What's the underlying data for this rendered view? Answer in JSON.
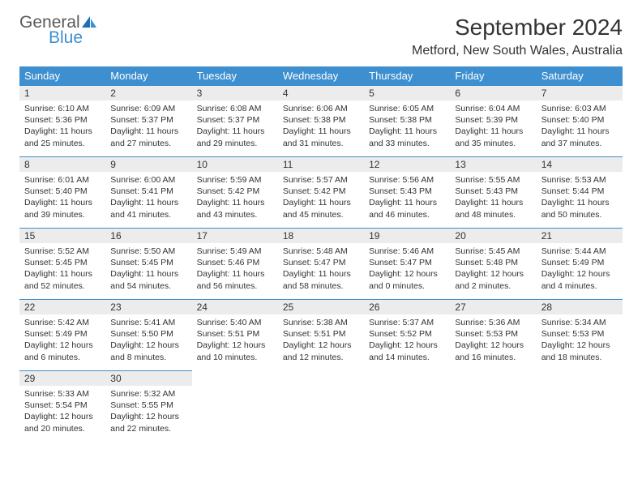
{
  "logo": {
    "line1": "General",
    "line2": "Blue"
  },
  "title": "September 2024",
  "location": "Metford, New South Wales, Australia",
  "colors": {
    "header_bg": "#3d8fcf",
    "daynum_bg": "#ececec",
    "rule": "#3d8fcf",
    "text": "#333333"
  },
  "day_headers": [
    "Sunday",
    "Monday",
    "Tuesday",
    "Wednesday",
    "Thursday",
    "Friday",
    "Saturday"
  ],
  "days": [
    {
      "n": "1",
      "sr": "Sunrise: 6:10 AM",
      "ss": "Sunset: 5:36 PM",
      "d1": "Daylight: 11 hours",
      "d2": "and 25 minutes."
    },
    {
      "n": "2",
      "sr": "Sunrise: 6:09 AM",
      "ss": "Sunset: 5:37 PM",
      "d1": "Daylight: 11 hours",
      "d2": "and 27 minutes."
    },
    {
      "n": "3",
      "sr": "Sunrise: 6:08 AM",
      "ss": "Sunset: 5:37 PM",
      "d1": "Daylight: 11 hours",
      "d2": "and 29 minutes."
    },
    {
      "n": "4",
      "sr": "Sunrise: 6:06 AM",
      "ss": "Sunset: 5:38 PM",
      "d1": "Daylight: 11 hours",
      "d2": "and 31 minutes."
    },
    {
      "n": "5",
      "sr": "Sunrise: 6:05 AM",
      "ss": "Sunset: 5:38 PM",
      "d1": "Daylight: 11 hours",
      "d2": "and 33 minutes."
    },
    {
      "n": "6",
      "sr": "Sunrise: 6:04 AM",
      "ss": "Sunset: 5:39 PM",
      "d1": "Daylight: 11 hours",
      "d2": "and 35 minutes."
    },
    {
      "n": "7",
      "sr": "Sunrise: 6:03 AM",
      "ss": "Sunset: 5:40 PM",
      "d1": "Daylight: 11 hours",
      "d2": "and 37 minutes."
    },
    {
      "n": "8",
      "sr": "Sunrise: 6:01 AM",
      "ss": "Sunset: 5:40 PM",
      "d1": "Daylight: 11 hours",
      "d2": "and 39 minutes."
    },
    {
      "n": "9",
      "sr": "Sunrise: 6:00 AM",
      "ss": "Sunset: 5:41 PM",
      "d1": "Daylight: 11 hours",
      "d2": "and 41 minutes."
    },
    {
      "n": "10",
      "sr": "Sunrise: 5:59 AM",
      "ss": "Sunset: 5:42 PM",
      "d1": "Daylight: 11 hours",
      "d2": "and 43 minutes."
    },
    {
      "n": "11",
      "sr": "Sunrise: 5:57 AM",
      "ss": "Sunset: 5:42 PM",
      "d1": "Daylight: 11 hours",
      "d2": "and 45 minutes."
    },
    {
      "n": "12",
      "sr": "Sunrise: 5:56 AM",
      "ss": "Sunset: 5:43 PM",
      "d1": "Daylight: 11 hours",
      "d2": "and 46 minutes."
    },
    {
      "n": "13",
      "sr": "Sunrise: 5:55 AM",
      "ss": "Sunset: 5:43 PM",
      "d1": "Daylight: 11 hours",
      "d2": "and 48 minutes."
    },
    {
      "n": "14",
      "sr": "Sunrise: 5:53 AM",
      "ss": "Sunset: 5:44 PM",
      "d1": "Daylight: 11 hours",
      "d2": "and 50 minutes."
    },
    {
      "n": "15",
      "sr": "Sunrise: 5:52 AM",
      "ss": "Sunset: 5:45 PM",
      "d1": "Daylight: 11 hours",
      "d2": "and 52 minutes."
    },
    {
      "n": "16",
      "sr": "Sunrise: 5:50 AM",
      "ss": "Sunset: 5:45 PM",
      "d1": "Daylight: 11 hours",
      "d2": "and 54 minutes."
    },
    {
      "n": "17",
      "sr": "Sunrise: 5:49 AM",
      "ss": "Sunset: 5:46 PM",
      "d1": "Daylight: 11 hours",
      "d2": "and 56 minutes."
    },
    {
      "n": "18",
      "sr": "Sunrise: 5:48 AM",
      "ss": "Sunset: 5:47 PM",
      "d1": "Daylight: 11 hours",
      "d2": "and 58 minutes."
    },
    {
      "n": "19",
      "sr": "Sunrise: 5:46 AM",
      "ss": "Sunset: 5:47 PM",
      "d1": "Daylight: 12 hours",
      "d2": "and 0 minutes."
    },
    {
      "n": "20",
      "sr": "Sunrise: 5:45 AM",
      "ss": "Sunset: 5:48 PM",
      "d1": "Daylight: 12 hours",
      "d2": "and 2 minutes."
    },
    {
      "n": "21",
      "sr": "Sunrise: 5:44 AM",
      "ss": "Sunset: 5:49 PM",
      "d1": "Daylight: 12 hours",
      "d2": "and 4 minutes."
    },
    {
      "n": "22",
      "sr": "Sunrise: 5:42 AM",
      "ss": "Sunset: 5:49 PM",
      "d1": "Daylight: 12 hours",
      "d2": "and 6 minutes."
    },
    {
      "n": "23",
      "sr": "Sunrise: 5:41 AM",
      "ss": "Sunset: 5:50 PM",
      "d1": "Daylight: 12 hours",
      "d2": "and 8 minutes."
    },
    {
      "n": "24",
      "sr": "Sunrise: 5:40 AM",
      "ss": "Sunset: 5:51 PM",
      "d1": "Daylight: 12 hours",
      "d2": "and 10 minutes."
    },
    {
      "n": "25",
      "sr": "Sunrise: 5:38 AM",
      "ss": "Sunset: 5:51 PM",
      "d1": "Daylight: 12 hours",
      "d2": "and 12 minutes."
    },
    {
      "n": "26",
      "sr": "Sunrise: 5:37 AM",
      "ss": "Sunset: 5:52 PM",
      "d1": "Daylight: 12 hours",
      "d2": "and 14 minutes."
    },
    {
      "n": "27",
      "sr": "Sunrise: 5:36 AM",
      "ss": "Sunset: 5:53 PM",
      "d1": "Daylight: 12 hours",
      "d2": "and 16 minutes."
    },
    {
      "n": "28",
      "sr": "Sunrise: 5:34 AM",
      "ss": "Sunset: 5:53 PM",
      "d1": "Daylight: 12 hours",
      "d2": "and 18 minutes."
    },
    {
      "n": "29",
      "sr": "Sunrise: 5:33 AM",
      "ss": "Sunset: 5:54 PM",
      "d1": "Daylight: 12 hours",
      "d2": "and 20 minutes."
    },
    {
      "n": "30",
      "sr": "Sunrise: 5:32 AM",
      "ss": "Sunset: 5:55 PM",
      "d1": "Daylight: 12 hours",
      "d2": "and 22 minutes."
    }
  ]
}
